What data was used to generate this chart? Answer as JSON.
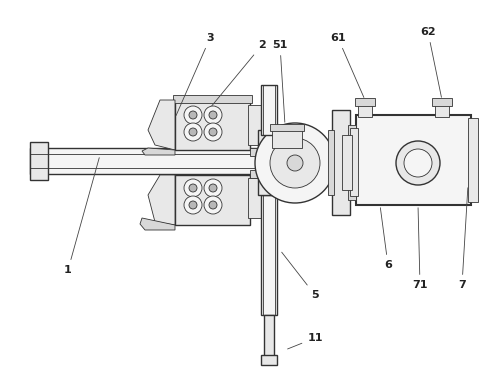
{
  "bg_color": "#ffffff",
  "line_color": "#555555",
  "lc_dark": "#333333",
  "lc_med": "#666666",
  "fc_light": "#f5f5f5",
  "fc_mid": "#e8e8e8",
  "fc_dark": "#d8d8d8",
  "fc_darkest": "#b8b8b8"
}
